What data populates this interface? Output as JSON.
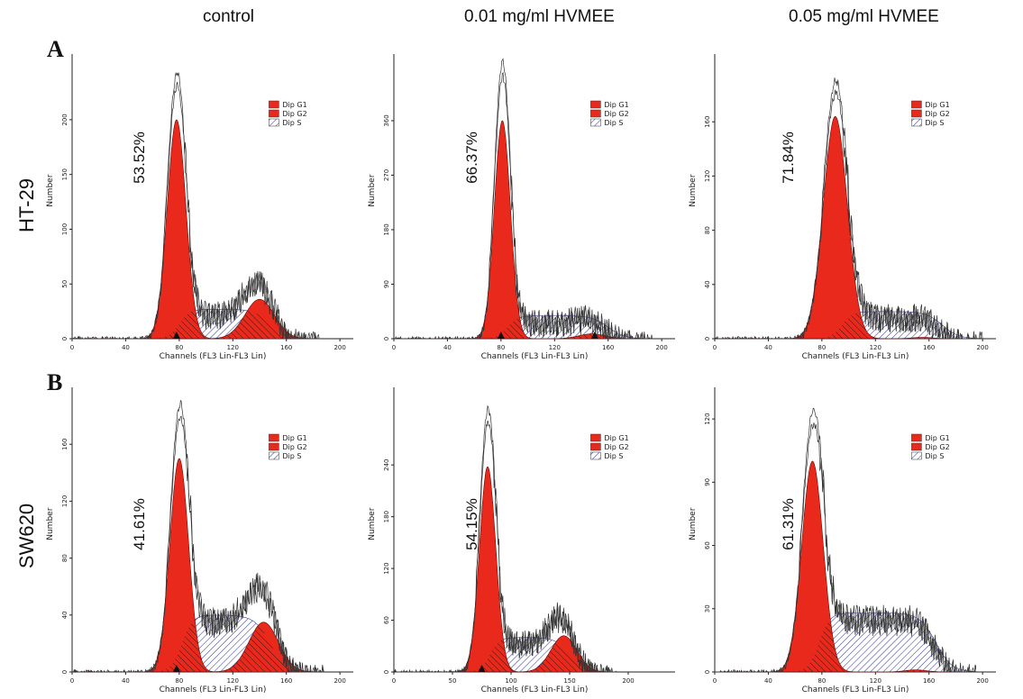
{
  "column_headers": [
    "control",
    "0.01 mg/ml HVMEE",
    "0.05 mg/ml HVMEE"
  ],
  "rows": [
    {
      "letter": "A",
      "label": "HT-29"
    },
    {
      "letter": "B",
      "label": "SW620"
    }
  ],
  "colors": {
    "g1": "#e8291c",
    "g2": "#e8291c",
    "s_hatch": "#3a3f9a",
    "trace": "#333333"
  },
  "chart_data": [
    {
      "type": "area",
      "row": "HT-29",
      "condition": "control",
      "percent_label": "53.52%",
      "xlabel": "Channels (FL3 Lin-FL3 Lin)",
      "ylabel": "Number",
      "xlim": [
        0,
        210
      ],
      "xticks": [
        0,
        40,
        80,
        120,
        160,
        200
      ],
      "ylim": [
        0,
        260
      ],
      "yticks": [
        0,
        50,
        100,
        150,
        200
      ],
      "legend": [
        "Dip G1",
        "Dip G2",
        "Dip S"
      ],
      "markers": [
        78
      ],
      "g1": {
        "mean": 78,
        "sd": 7,
        "height": 200
      },
      "g2": {
        "mean": 140,
        "sd": 11,
        "height": 36
      },
      "s": {
        "from": 80,
        "to": 148,
        "height": 27
      },
      "peak_max": 240
    },
    {
      "type": "area",
      "row": "HT-29",
      "condition": "0.01 mg/ml HVMEE",
      "percent_label": "66.37%",
      "xlabel": "Channels (FL3 Lin-FL3 Lin)",
      "ylabel": "Number",
      "xlim": [
        0,
        210
      ],
      "xticks": [
        0,
        40,
        80,
        120,
        160,
        200
      ],
      "ylim": [
        0,
        470
      ],
      "yticks": [
        0,
        90,
        180,
        270,
        360
      ],
      "legend": [
        "Dip G1",
        "Dip G2",
        "Dip S"
      ],
      "markers": [
        80,
        150
      ],
      "g1": {
        "mean": 81,
        "sd": 6,
        "height": 360
      },
      "g2": {
        "mean": 148,
        "sd": 10,
        "height": 8
      },
      "s": {
        "from": 85,
        "to": 160,
        "height": 38
      },
      "peak_max": 450
    },
    {
      "type": "area",
      "row": "HT-29",
      "condition": "0.05 mg/ml HVMEE",
      "percent_label": "71.84%",
      "xlabel": "Channels (FL3 Lin-FL3 Lin)",
      "ylabel": "Number",
      "xlim": [
        0,
        210
      ],
      "xticks": [
        0,
        40,
        80,
        120,
        160,
        200
      ],
      "ylim": [
        0,
        210
      ],
      "yticks": [
        0,
        40,
        80,
        120,
        160
      ],
      "legend": [
        "Dip G1",
        "Dip G2",
        "Dip S"
      ],
      "markers": [],
      "g1": {
        "mean": 90,
        "sd": 9,
        "height": 164
      },
      "g2": {
        "mean": 155,
        "sd": 8,
        "height": 1
      },
      "s": {
        "from": 95,
        "to": 170,
        "height": 20
      },
      "peak_max": 188
    },
    {
      "type": "area",
      "row": "SW620",
      "condition": "control",
      "percent_label": "41.61%",
      "xlabel": "Channels (FL3 Lin-FL3 Lin)",
      "ylabel": "Number",
      "xlim": [
        0,
        210
      ],
      "xticks": [
        0,
        40,
        80,
        120,
        160,
        200
      ],
      "ylim": [
        0,
        200
      ],
      "yticks": [
        0,
        40,
        80,
        120,
        160
      ],
      "legend": [
        "Dip G1",
        "Dip G2",
        "Dip S"
      ],
      "markers": [
        78
      ],
      "g1": {
        "mean": 80,
        "sd": 7,
        "height": 150
      },
      "g2": {
        "mean": 143,
        "sd": 11,
        "height": 35
      },
      "s": {
        "from": 82,
        "to": 148,
        "height": 40
      },
      "peak_max": 185
    },
    {
      "type": "area",
      "row": "SW620",
      "condition": "0.01 mg/ml HVMEE",
      "percent_label": "54.15%",
      "xlabel": "Channels (FL3 Lin-FL3 Lin)",
      "ylabel": "Number",
      "xlim": [
        0,
        240
      ],
      "xticks": [
        0,
        50,
        100,
        150,
        200
      ],
      "ylim": [
        0,
        330
      ],
      "yticks": [
        0,
        60,
        120,
        180,
        240
      ],
      "legend": [
        "Dip G1",
        "Dip G2",
        "Dip S"
      ],
      "markers": [
        75
      ],
      "g1": {
        "mean": 80,
        "sd": 7,
        "height": 238
      },
      "g2": {
        "mean": 145,
        "sd": 11,
        "height": 42
      },
      "s": {
        "from": 82,
        "to": 150,
        "height": 40
      },
      "peak_max": 300
    },
    {
      "type": "area",
      "row": "SW620",
      "condition": "0.05 mg/ml HVMEE",
      "percent_label": "61.31%",
      "xlabel": "Channels (FL3 Lin-FL3 Lin)",
      "ylabel": "Number",
      "xlim": [
        0,
        210
      ],
      "xticks": [
        0,
        40,
        80,
        120,
        160,
        200
      ],
      "ylim": [
        0,
        135
      ],
      "yticks": [
        0,
        30,
        60,
        90,
        120
      ],
      "legend": [
        "Dip G1",
        "Dip G2",
        "Dip S"
      ],
      "markers": [],
      "g1": {
        "mean": 73,
        "sd": 8,
        "height": 100
      },
      "g2": {
        "mean": 150,
        "sd": 8,
        "height": 1
      },
      "s": {
        "from": 78,
        "to": 165,
        "height": 28
      },
      "peak_max": 122
    }
  ]
}
